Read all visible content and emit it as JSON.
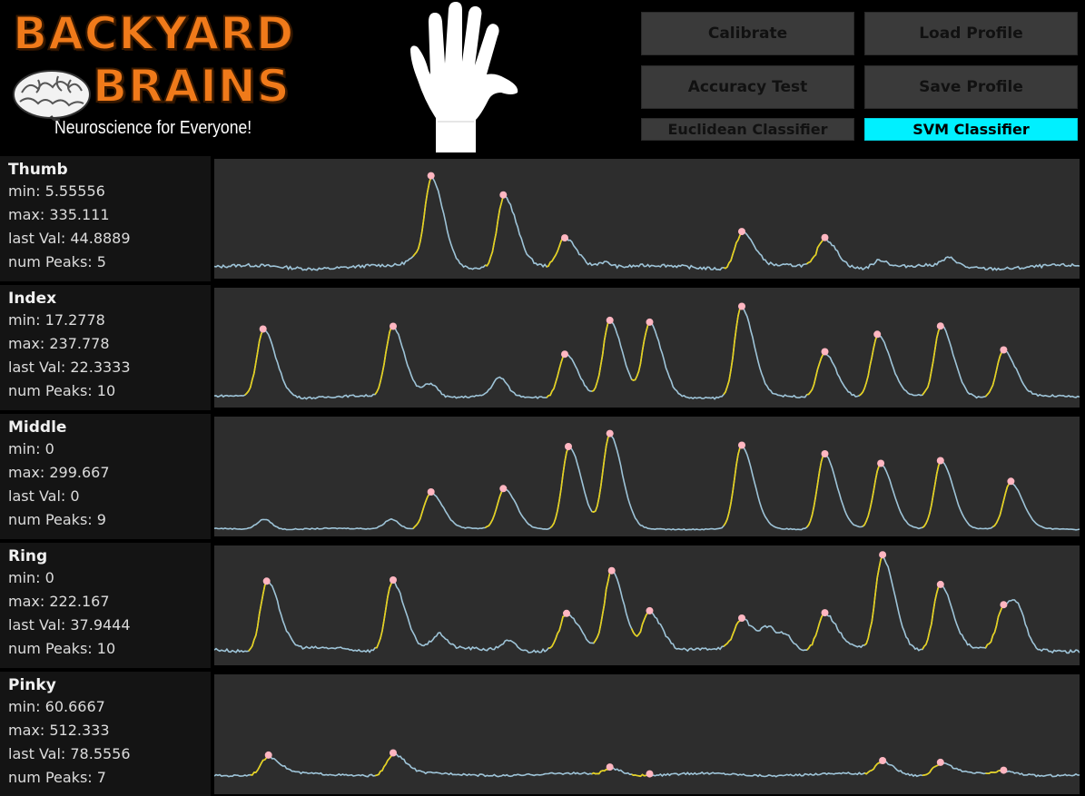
{
  "header": {
    "logo": {
      "line1": "BACKYARD",
      "line2": "BRAINS",
      "tagline": "Neuroscience for Everyone!"
    },
    "hand_icon": "hand-icon"
  },
  "buttons": {
    "calibrate": "Calibrate",
    "load_profile": "Load Profile",
    "accuracy_test": "Accuracy Test",
    "save_profile": "Save Profile",
    "euclidean": "Euclidean Classifier",
    "svm": "SVM Classifier",
    "active_classifier": "SVM Classifier"
  },
  "colors": {
    "accent_cyan": "#00f0ff",
    "logo_orange": "#f07a1a",
    "signal": "#9ec4d8",
    "rising_edge": "#e8d21a",
    "peak_marker": "#ffb6c1"
  },
  "fingers": [
    {
      "name": "Thumb",
      "min": "min: 5.55556",
      "max": "max: 335.111",
      "last": "last Val: 44.8889",
      "peaks": "num Peaks: 5"
    },
    {
      "name": "Index",
      "min": "min: 17.2778",
      "max": "max: 237.778",
      "last": "last Val: 22.3333",
      "peaks": "num Peaks: 10"
    },
    {
      "name": "Middle",
      "min": "min: 0",
      "max": "max: 299.667",
      "last": "last Val: 0",
      "peaks": "num Peaks: 9"
    },
    {
      "name": "Ring",
      "min": "min: 0",
      "max": "max: 222.167",
      "last": "last Val: 37.9444",
      "peaks": "num Peaks: 10"
    },
    {
      "name": "Pinky",
      "min": "min: 60.6667",
      "max": "max: 512.333",
      "last": "last Val: 78.5556",
      "peaks": "num Peaks: 7"
    }
  ],
  "signals": [
    {
      "baseline": 0.06,
      "noise": 0.03,
      "bumps": [
        [
          0.23,
          0.07
        ],
        [
          0.45,
          0.06
        ],
        [
          0.77,
          0.08
        ],
        [
          0.85,
          0.08
        ]
      ],
      "peaks": [
        [
          0.251,
          0.95
        ],
        [
          0.335,
          0.74
        ],
        [
          0.405,
          0.36
        ],
        [
          0.61,
          0.41
        ],
        [
          0.705,
          0.34
        ]
      ]
    },
    {
      "baseline": 0.05,
      "noise": 0.02,
      "bumps": [
        [
          0.25,
          0.14
        ],
        [
          0.33,
          0.18
        ]
      ],
      "peaks": [
        [
          0.057,
          0.71
        ],
        [
          0.206,
          0.74
        ],
        [
          0.406,
          0.48
        ],
        [
          0.457,
          0.79
        ],
        [
          0.503,
          0.77
        ],
        [
          0.609,
          0.93
        ],
        [
          0.705,
          0.49
        ],
        [
          0.767,
          0.65
        ],
        [
          0.84,
          0.75
        ],
        [
          0.912,
          0.51
        ]
      ]
    },
    {
      "baseline": 0.02,
      "noise": 0.01,
      "bumps": [
        [
          0.058,
          0.1
        ],
        [
          0.205,
          0.1
        ]
      ],
      "peaks": [
        [
          0.25,
          0.38
        ],
        [
          0.335,
          0.41
        ],
        [
          0.41,
          0.83
        ],
        [
          0.457,
          0.94
        ],
        [
          0.609,
          0.83
        ],
        [
          0.705,
          0.76
        ],
        [
          0.77,
          0.65
        ],
        [
          0.84,
          0.69
        ],
        [
          0.92,
          0.47
        ]
      ]
    },
    {
      "baseline": 0.1,
      "noise": 0.03,
      "bumps": [
        [
          0.26,
          0.14
        ],
        [
          0.34,
          0.1
        ],
        [
          0.64,
          0.2
        ],
        [
          0.66,
          0.16
        ],
        [
          0.93,
          0.25
        ]
      ],
      "peaks": [
        [
          0.061,
          0.78
        ],
        [
          0.206,
          0.78
        ],
        [
          0.407,
          0.45
        ],
        [
          0.459,
          0.86
        ],
        [
          0.503,
          0.48
        ],
        [
          0.609,
          0.39
        ],
        [
          0.705,
          0.46
        ],
        [
          0.772,
          1.0
        ],
        [
          0.839,
          0.76
        ],
        [
          0.912,
          0.49
        ]
      ]
    },
    {
      "baseline": 0.14,
      "noise": 0.02,
      "bumps": [],
      "peaks": [
        [
          0.062,
          0.31
        ],
        [
          0.207,
          0.34
        ],
        [
          0.458,
          0.2
        ],
        [
          0.503,
          0.14
        ],
        [
          0.772,
          0.27
        ],
        [
          0.839,
          0.25
        ],
        [
          0.912,
          0.17
        ]
      ]
    }
  ]
}
